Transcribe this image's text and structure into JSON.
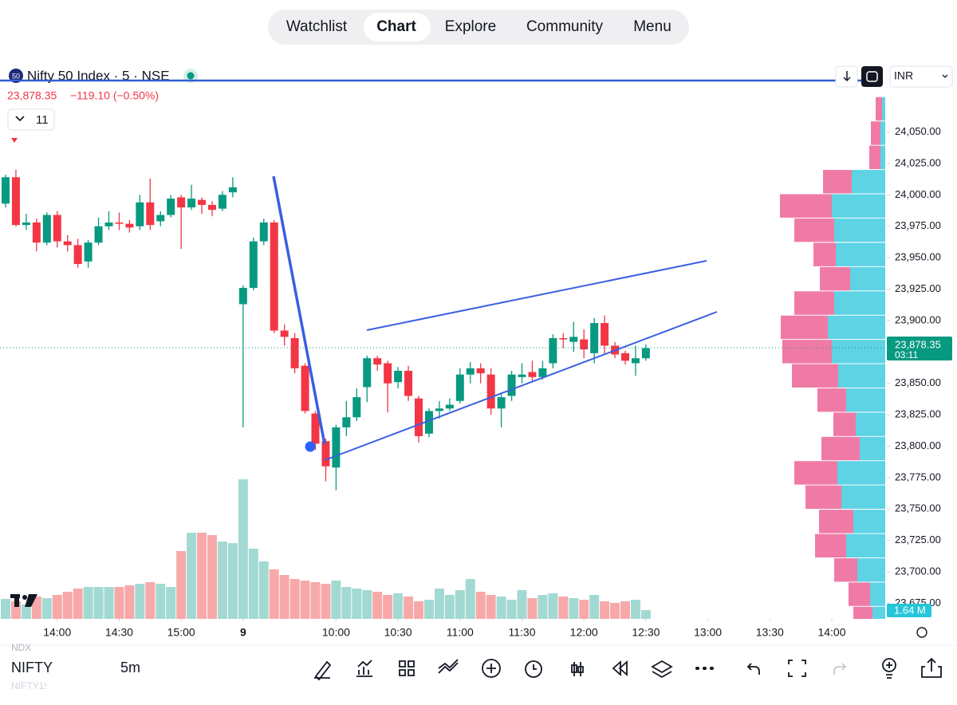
{
  "nav": {
    "tabs": [
      "Watchlist",
      "Chart",
      "Explore",
      "Community",
      "Menu"
    ],
    "active": "Chart"
  },
  "header": {
    "badge": "50",
    "symbol": "Nifty 50 Index · 5 · NSE",
    "price": "23,878.35",
    "change": "−119.10 (−0.50%)",
    "indicators": "11",
    "currency": "INR"
  },
  "footer": {
    "exchange": "NDX",
    "ticker": "NIFTY",
    "interval": "5m",
    "sub": "NIFTY1!"
  },
  "chart_data": {
    "type": "candlestick",
    "candles": [
      [
        23993,
        24016,
        23990,
        24014
      ],
      [
        24014,
        24020,
        23975,
        23976
      ],
      [
        23976,
        23985,
        23972,
        23978
      ],
      [
        23978,
        23981,
        23955,
        23962
      ],
      [
        23962,
        23986,
        23960,
        23984
      ],
      [
        23984,
        23987,
        23958,
        23963
      ],
      [
        23963,
        23968,
        23955,
        23960
      ],
      [
        23960,
        23965,
        23942,
        23945
      ],
      [
        23947,
        23964,
        23942,
        23962
      ],
      [
        23962,
        23982,
        23960,
        23975
      ],
      [
        23975,
        23987,
        23972,
        23978
      ],
      [
        23978,
        23986,
        23972,
        23977
      ],
      [
        23977,
        23980,
        23970,
        23974
      ],
      [
        23975,
        24000,
        23972,
        23994
      ],
      [
        23994,
        24013,
        23972,
        23976
      ],
      [
        23979,
        23987,
        23975,
        23984
      ],
      [
        23984,
        24000,
        23982,
        23997
      ],
      [
        23998,
        24000,
        23957,
        23990
      ],
      [
        23990,
        24008,
        23988,
        23997
      ],
      [
        23996,
        23998,
        23985,
        23992
      ],
      [
        23992,
        23995,
        23983,
        23988
      ],
      [
        23989,
        24003,
        23987,
        24000
      ],
      [
        24002,
        24014,
        23998,
        24006
      ],
      [
        23913,
        23928,
        23815,
        23926
      ],
      [
        23926,
        23966,
        23924,
        23963
      ],
      [
        23963,
        23981,
        23960,
        23978
      ],
      [
        23978,
        23980,
        23890,
        23892
      ],
      [
        23892,
        23897,
        23880,
        23887
      ],
      [
        23886,
        23890,
        23858,
        23862
      ],
      [
        23864,
        23866,
        23826,
        23828
      ],
      [
        23826,
        23828,
        23797,
        23802
      ],
      [
        23804,
        23806,
        23772,
        23784
      ],
      [
        23783,
        23817,
        23765,
        23815
      ],
      [
        23815,
        23836,
        23808,
        23823
      ],
      [
        23823,
        23846,
        23820,
        23839
      ],
      [
        23847,
        23872,
        23835,
        23870
      ],
      [
        23870,
        23872,
        23860,
        23865
      ],
      [
        23866,
        23868,
        23827,
        23850
      ],
      [
        23851,
        23863,
        23846,
        23860
      ],
      [
        23860,
        23864,
        23836,
        23840
      ],
      [
        23838,
        23840,
        23803,
        23808
      ],
      [
        23810,
        23830,
        23807,
        23828
      ],
      [
        23828,
        23836,
        23822,
        23830
      ],
      [
        23830,
        23838,
        23828,
        23833
      ],
      [
        23836,
        23862,
        23834,
        23857
      ],
      [
        23857,
        23867,
        23850,
        23862
      ],
      [
        23862,
        23866,
        23850,
        23858
      ],
      [
        23857,
        23862,
        23825,
        23830
      ],
      [
        23830,
        23842,
        23815,
        23839
      ],
      [
        23840,
        23860,
        23836,
        23857
      ],
      [
        23855,
        23866,
        23850,
        23857
      ],
      [
        23859,
        23868,
        23852,
        23855
      ],
      [
        23855,
        23868,
        23853,
        23862
      ],
      [
        23866,
        23889,
        23862,
        23886
      ],
      [
        23886,
        23890,
        23878,
        23885
      ],
      [
        23883,
        23899,
        23875,
        23887
      ],
      [
        23885,
        23893,
        23870,
        23877
      ],
      [
        23874,
        23902,
        23866,
        23898
      ],
      [
        23898,
        23904,
        23873,
        23880
      ],
      [
        23880,
        23883,
        23870,
        23873
      ],
      [
        23874,
        23876,
        23865,
        23868
      ],
      [
        23866,
        23880,
        23856,
        23870
      ],
      [
        23870,
        23881,
        23868,
        23878
      ]
    ],
    "volumes": [
      3.75,
      3.3,
      2.7,
      4.2,
      3.9,
      4.5,
      5.1,
      5.7,
      6,
      6,
      6,
      6,
      6.3,
      6.6,
      6.9,
      6.6,
      6,
      12.75,
      16.2,
      16.2,
      15.75,
      14.55,
      14.25,
      26.25,
      13.2,
      10.8,
      9.3,
      8.25,
      7.5,
      7.2,
      6.9,
      6.6,
      7.2,
      6,
      5.7,
      5.4,
      5.1,
      4.5,
      4.8,
      4.2,
      3.3,
      3.6,
      5.7,
      4.5,
      5.4,
      7.5,
      5.1,
      4.5,
      4.2,
      3.6,
      5.4,
      3.9,
      4.5,
      4.8,
      4.2,
      3.9,
      3.6,
      4.5,
      3.3,
      3,
      3.3,
      3.6,
      1.64
    ],
    "volume_label": "1.64 M",
    "up_color": "#089981",
    "down_color": "#f23645",
    "up_volume_color": "#a3d9d3",
    "down_volume_color": "#f7a9a9",
    "ylim": [
      23662.6,
      24115.7
    ],
    "yticks": [
      {
        "value": 24050,
        "label": "24,050.00"
      },
      {
        "value": 24025,
        "label": "24,025.00"
      },
      {
        "value": 24000,
        "label": "24,000.00"
      },
      {
        "value": 23975,
        "label": "23,975.00"
      },
      {
        "value": 23950,
        "label": "23,950.00"
      },
      {
        "value": 23925,
        "label": "23,925.00"
      },
      {
        "value": 23900,
        "label": "23,900.00"
      },
      {
        "value": 23875,
        "label": "23,875.00"
      },
      {
        "value": 23850,
        "label": "23,850.00"
      },
      {
        "value": 23825,
        "label": "23,825.00"
      },
      {
        "value": 23800,
        "label": "23,800.00"
      },
      {
        "value": 23775,
        "label": "23,775.00"
      },
      {
        "value": 23750,
        "label": "23,750.00"
      },
      {
        "value": 23725,
        "label": "23,725.00"
      },
      {
        "value": 23700,
        "label": "23,700.00"
      },
      {
        "value": 23675,
        "label": "23,675.00"
      }
    ],
    "last_price": 23878.35,
    "last_price_label": "23,878.35",
    "countdown": "03:11",
    "xticks": [
      {
        "value": 5,
        "label": "14:00"
      },
      {
        "value": 11,
        "label": "14:30"
      },
      {
        "value": 17,
        "label": "15:00"
      },
      {
        "value": 23,
        "label": "9"
      },
      {
        "value": 32,
        "label": "10:00"
      },
      {
        "value": 38,
        "label": "10:30"
      },
      {
        "value": 44,
        "label": "11:00"
      },
      {
        "value": 50,
        "label": "11:30"
      },
      {
        "value": 56,
        "label": "12:00"
      },
      {
        "value": 62,
        "label": "12:30"
      },
      {
        "value": 68,
        "label": "13:00"
      },
      {
        "value": 74,
        "label": "13:30"
      },
      {
        "value": 80,
        "label": "14:00"
      }
    ],
    "profile": {
      "buy_color": "#5dd3e4",
      "sell_color": "#f07aa6",
      "prices": [
        24068.4,
        24049.1,
        24029.8,
        24010.5,
        23991.2,
        23971.9,
        23952.5,
        23933.2,
        23913.9,
        23894.6,
        23875.3,
        23856.0,
        23836.7,
        23817.4,
        23798.1,
        23778.8,
        23759.5,
        23740.1,
        23720.8,
        23701.5,
        23682.2,
        23662.9
      ],
      "buy": [
        4,
        6,
        6,
        42,
        67,
        64,
        62,
        44,
        64,
        72,
        67,
        59,
        49,
        37,
        32,
        60,
        55,
        40,
        49,
        35,
        19,
        16
      ],
      "sell": [
        8,
        12,
        14,
        36,
        65,
        50,
        28,
        38,
        50,
        59,
        62,
        58,
        36,
        28,
        48,
        54,
        45,
        43,
        39,
        29,
        27,
        24
      ]
    }
  }
}
